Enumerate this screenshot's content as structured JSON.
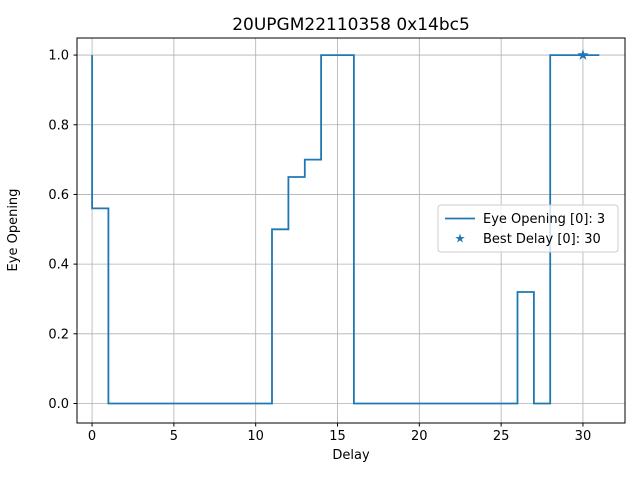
{
  "title": "20UPGM22110358 0x14bc5",
  "chart_data": {
    "type": "line",
    "drawstyle": "steps-pre",
    "title": "20UPGM22110358 0x14bc5",
    "xlabel": "Delay",
    "ylabel": "Eye Opening",
    "xlim": [
      -0.92,
      32.57
    ],
    "ylim": [
      -0.056,
      1.049
    ],
    "xticks": [
      0,
      5,
      10,
      15,
      20,
      25,
      30
    ],
    "xtick_labels": [
      "0",
      "5",
      "10",
      "15",
      "20",
      "25",
      "30"
    ],
    "yticks": [
      0.0,
      0.2,
      0.4,
      0.6,
      0.8,
      1.0
    ],
    "ytick_labels": [
      "0.0",
      "0.2",
      "0.4",
      "0.6",
      "0.8",
      "1.0"
    ],
    "grid": true,
    "colors": {
      "line": "#1f77b4",
      "grid": "#b0b0b0",
      "spine": "#000000",
      "legend_border": "#cccccc",
      "legend_background": "#ffffff"
    },
    "series": [
      {
        "name": "Eye Opening [0]: 3",
        "x": [
          0,
          1,
          2,
          3,
          4,
          5,
          6,
          7,
          8,
          9,
          10,
          11,
          12,
          13,
          14,
          15,
          16,
          17,
          18,
          19,
          20,
          21,
          22,
          23,
          24,
          25,
          26,
          27,
          28,
          29,
          30,
          31
        ],
        "y": [
          1.0,
          0.56,
          0,
          0,
          0,
          0,
          0,
          0,
          0,
          0,
          0,
          0,
          0.5,
          0.65,
          0.7,
          1.0,
          1.0,
          0,
          0,
          0,
          0,
          0,
          0,
          0,
          0,
          0,
          0,
          0.32,
          0,
          1.0,
          1.0,
          1.0
        ]
      }
    ],
    "best_delay_point": {
      "x": 30,
      "y": 1.0,
      "marker": "star"
    },
    "legend": {
      "position": "center right",
      "entries": [
        {
          "label": "Eye Opening [0]: 3",
          "marker": "line"
        },
        {
          "label": "Best Delay [0]: 30",
          "marker": "star"
        }
      ]
    }
  }
}
